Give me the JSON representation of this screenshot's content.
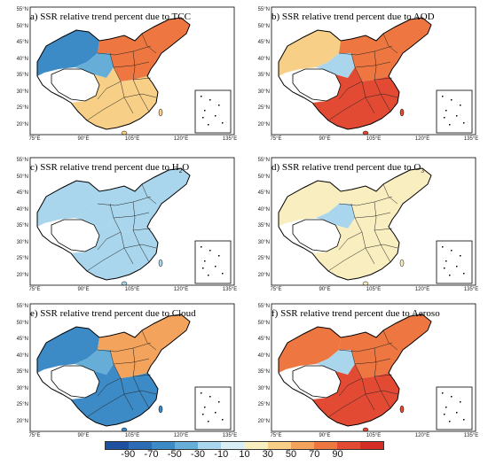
{
  "panels": [
    {
      "title": "a) SSR relative trend percent due to TCC",
      "lat_labels": [
        "55°N",
        "50°N",
        "45°N",
        "40°N",
        "35°N",
        "30°N",
        "25°N",
        "20°N"
      ],
      "lon_labels": [
        "75°E",
        "90°E",
        "105°E",
        "120°E",
        "135°E"
      ],
      "regions": {
        "northwest": -70,
        "west_mid": -40,
        "east": 70,
        "south": 40,
        "plateau_edge": 30
      }
    },
    {
      "title": "b) SSR relative trend percent due to AOD",
      "lat_labels": [
        "55°N",
        "50°N",
        "45°N",
        "40°N",
        "35°N",
        "30°N",
        "25°N",
        "20°N"
      ],
      "lon_labels": [
        "75°E",
        "90°E",
        "105°E",
        "120°E",
        "135°E"
      ],
      "regions": {
        "northwest": 40,
        "west_mid": -20,
        "east": 80,
        "south": 90,
        "plateau_edge": 60
      }
    },
    {
      "title_prefix": "c) SSR relative trend percent due to H",
      "title_sub": "2",
      "title_suffix": "O",
      "lat_labels": [
        "55°N",
        "50°N",
        "45°N",
        "40°N",
        "35°N",
        "30°N",
        "25°N",
        "20°N"
      ],
      "lon_labels": [
        "75°E",
        "90°E",
        "105°E",
        "120°E",
        "135°E"
      ],
      "regions": {
        "northwest": -20,
        "west_mid": -20,
        "east": -20,
        "south": -20,
        "plateau_edge": -20
      }
    },
    {
      "title_prefix": "d) SSR relative trend percent due to O",
      "title_sub": "3",
      "title_suffix": "",
      "lat_labels": [
        "55°N",
        "50°N",
        "45°N",
        "40°N",
        "35°N",
        "30°N",
        "25°N",
        "20°N"
      ],
      "lon_labels": [
        "75°E",
        "90°E",
        "105°E",
        "120°E",
        "135°E"
      ],
      "regions": {
        "northwest": 10,
        "west_mid": -20,
        "east": 10,
        "south": 10,
        "plateau_edge": 10
      }
    },
    {
      "title": "e) SSR relative trend percent due to Cloud",
      "lat_labels": [
        "55°N",
        "50°N",
        "45°N",
        "40°N",
        "35°N",
        "30°N",
        "25°N",
        "20°N"
      ],
      "lon_labels": [
        "75°E",
        "90°E",
        "105°E",
        "120°E",
        "135°E"
      ],
      "regions": {
        "northwest": -70,
        "west_mid": -40,
        "east": 60,
        "south": -60,
        "plateau_edge": 50
      }
    },
    {
      "title_prefix": "f) SSR relative trend percent due to Aeroso",
      "title_sub": "",
      "title_suffix": "",
      "lat_labels": [
        "55°N",
        "50°N",
        "45°N",
        "40°N",
        "35°N",
        "30°N",
        "25°N",
        "20°N"
      ],
      "lon_labels": [
        "75°E",
        "90°E",
        "105°E",
        "120°E",
        "135°E"
      ],
      "regions": {
        "northwest": 70,
        "west_mid": -20,
        "east": 80,
        "south": 90,
        "plateau_edge": 70
      }
    }
  ],
  "colorbar": {
    "labels": [
      "-90",
      "-70",
      "-50",
      "-30",
      "-10",
      "10",
      "30",
      "50",
      "70",
      "90"
    ],
    "colors": [
      "#1f4fa0",
      "#2b6cb5",
      "#3d8bc6",
      "#66aed8",
      "#a9d6ec",
      "#d8eef6",
      "#f9eec0",
      "#f7cf86",
      "#f4a35c",
      "#ee7641",
      "#e34a33",
      "#d42d25"
    ],
    "bounds": [
      -90,
      -70,
      -50,
      -30,
      -10,
      10,
      30,
      50,
      70,
      90
    ]
  }
}
